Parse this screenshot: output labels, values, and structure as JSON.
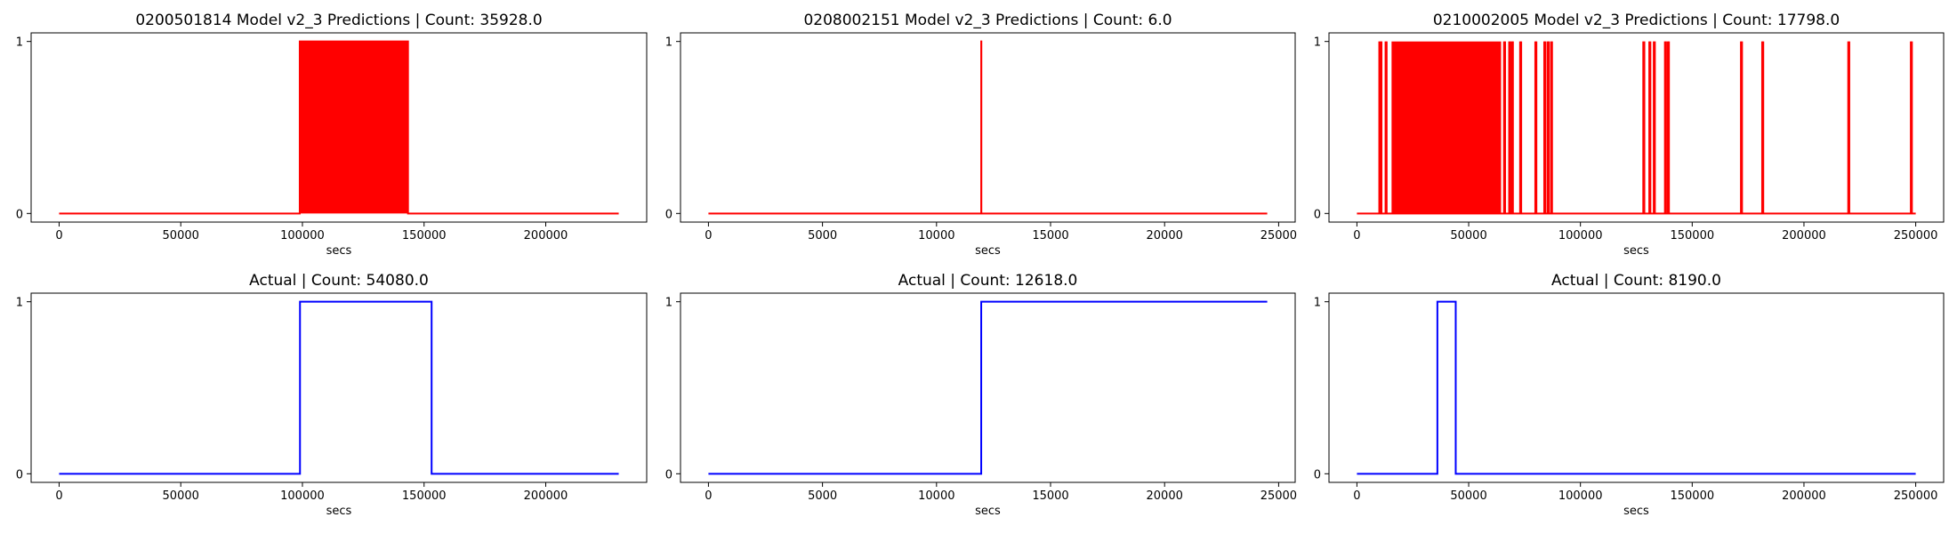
{
  "chart_data": [
    {
      "type": "line",
      "title": "0200501814 Model v2_3 Predictions | Count: 35928.0",
      "xlabel": "secs",
      "ylabel": "",
      "xlim": [
        -11500,
        241500
      ],
      "ylim": [
        -0.05,
        1.05
      ],
      "xticks": [
        0,
        50000,
        100000,
        150000,
        200000
      ],
      "yticks": [
        0,
        1
      ],
      "color": "#ff0000",
      "style": "dense-block",
      "x": [
        0,
        98900,
        98900,
        143400,
        143400,
        230000
      ],
      "y": [
        0,
        0,
        1,
        1,
        0,
        0
      ]
    },
    {
      "type": "line",
      "title": "0208002151 Model v2_3 Predictions | Count: 6.0",
      "xlabel": "secs",
      "ylabel": "",
      "xlim": [
        -1225,
        25725
      ],
      "ylim": [
        -0.05,
        1.05
      ],
      "xticks": [
        0,
        5000,
        10000,
        15000,
        20000,
        25000
      ],
      "yticks": [
        0,
        1
      ],
      "color": "#ff0000",
      "style": "step",
      "x": [
        0,
        11960,
        11960,
        11966,
        11966,
        24500
      ],
      "y": [
        0,
        0,
        1,
        1,
        0,
        0
      ]
    },
    {
      "type": "line",
      "title": "0210002005 Model v2_3 Predictions | Count: 17798.0",
      "xlabel": "secs",
      "ylabel": "",
      "xlim": [
        -12500,
        262500
      ],
      "ylim": [
        -0.05,
        1.05
      ],
      "xticks": [
        0,
        50000,
        100000,
        150000,
        200000,
        250000
      ],
      "yticks": [
        0,
        1
      ],
      "color": "#ff0000",
      "style": "spikes",
      "x": [
        0,
        250000
      ],
      "y": [
        0,
        0
      ],
      "blocks": [
        [
          15500,
          64500
        ]
      ],
      "spikes": [
        10000,
        10500,
        11000,
        12800,
        13300,
        65800,
        66300,
        68100,
        68600,
        69300,
        69800,
        73000,
        73500,
        79800,
        80300,
        83800,
        84300,
        85300,
        85800,
        86800,
        87300,
        128100,
        128600,
        130800,
        131300,
        132800,
        133300,
        137800,
        138300,
        139100,
        139600,
        171800,
        172300,
        181300,
        181800,
        219800,
        220300,
        247800,
        248300
      ]
    },
    {
      "type": "line",
      "title": "Actual | Count: 54080.0",
      "xlabel": "secs",
      "ylabel": "",
      "xlim": [
        -11500,
        241500
      ],
      "ylim": [
        -0.05,
        1.05
      ],
      "xticks": [
        0,
        50000,
        100000,
        150000,
        200000
      ],
      "yticks": [
        0,
        1
      ],
      "color": "#0000ff",
      "style": "step",
      "x": [
        0,
        99000,
        99000,
        153100,
        153100,
        230000
      ],
      "y": [
        0,
        0,
        1,
        1,
        0,
        0
      ]
    },
    {
      "type": "line",
      "title": "Actual | Count: 12618.0",
      "xlabel": "secs",
      "ylabel": "",
      "xlim": [
        -1225,
        25725
      ],
      "ylim": [
        -0.05,
        1.05
      ],
      "xticks": [
        0,
        5000,
        10000,
        15000,
        20000,
        25000
      ],
      "yticks": [
        0,
        1
      ],
      "color": "#0000ff",
      "style": "step",
      "x": [
        0,
        11960,
        11960,
        24500
      ],
      "y": [
        0,
        0,
        1,
        1
      ]
    },
    {
      "type": "line",
      "title": "Actual | Count: 8190.0",
      "xlabel": "secs",
      "ylabel": "",
      "xlim": [
        -12500,
        262500
      ],
      "ylim": [
        -0.05,
        1.05
      ],
      "xticks": [
        0,
        50000,
        100000,
        150000,
        200000,
        250000
      ],
      "yticks": [
        0,
        1
      ],
      "color": "#0000ff",
      "style": "step",
      "x": [
        0,
        36000,
        36000,
        44200,
        44200,
        250000
      ],
      "y": [
        0,
        0,
        1,
        1,
        0,
        0
      ]
    }
  ]
}
